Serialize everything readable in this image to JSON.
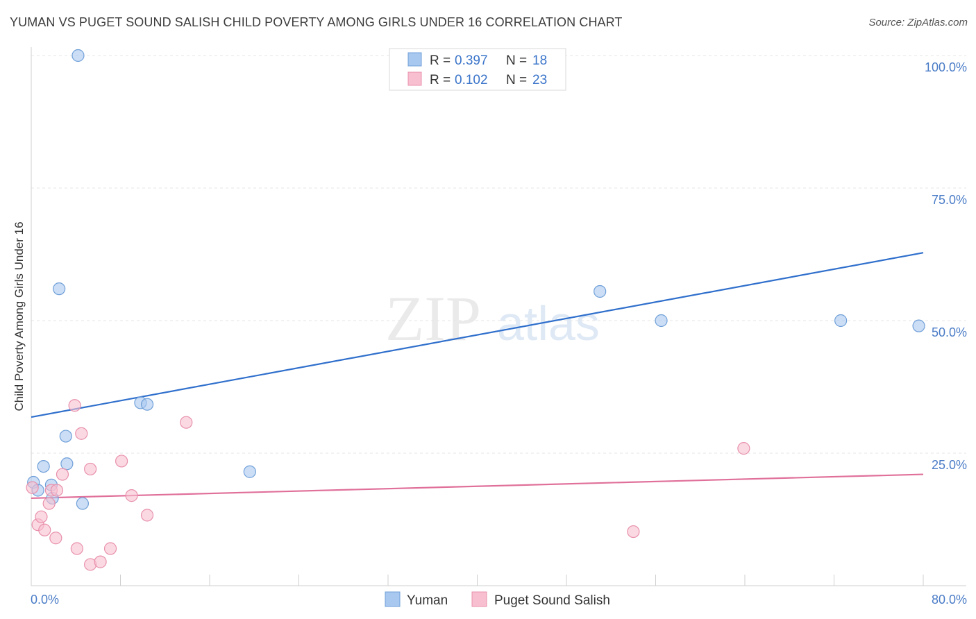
{
  "header": {
    "title": "YUMAN VS PUGET SOUND SALISH CHILD POVERTY AMONG GIRLS UNDER 16 CORRELATION CHART",
    "source": "Source: ZipAtlas.com"
  },
  "watermark": {
    "zip": "ZIP",
    "atlas": "atlas"
  },
  "chart_data": {
    "type": "scatter",
    "title": "YUMAN VS PUGET SOUND SALISH CHILD POVERTY AMONG GIRLS UNDER 16 CORRELATION CHART",
    "xlabel": "",
    "ylabel": "Child Poverty Among Girls Under 16",
    "xlim": [
      0,
      80
    ],
    "ylim": [
      0,
      100
    ],
    "x_tick_labels": [
      "0.0%",
      "80.0%"
    ],
    "y_ticks": [
      25,
      50,
      75,
      100
    ],
    "y_tick_labels": [
      "25.0%",
      "50.0%",
      "75.0%",
      "100.0%"
    ],
    "grid": true,
    "legend_position": "bottom-center",
    "series": [
      {
        "name": "Yuman",
        "color": "#a9c8f0",
        "stroke": "#6f9fd8",
        "line_color": "#2f6fcc",
        "R": "0.397",
        "N": "18",
        "trend": [
          [
            0,
            31.8
          ],
          [
            80,
            62.8
          ]
        ],
        "points": [
          [
            4.2,
            100
          ],
          [
            2.5,
            56
          ],
          [
            0.2,
            19.5
          ],
          [
            0.6,
            18
          ],
          [
            1.1,
            22.5
          ],
          [
            1.8,
            19
          ],
          [
            1.9,
            16.5
          ],
          [
            3.1,
            28.2
          ],
          [
            3.2,
            23
          ],
          [
            4.6,
            15.5
          ],
          [
            9.8,
            34.5
          ],
          [
            10.4,
            34.2
          ],
          [
            19.6,
            21.5
          ],
          [
            51,
            55.5
          ],
          [
            56.5,
            50
          ],
          [
            72.6,
            50
          ],
          [
            79.6,
            49
          ]
        ]
      },
      {
        "name": "Puget Sound Salish",
        "color": "#f8bfd0",
        "stroke": "#e890ab",
        "line_color": "#e0709a",
        "R": "0.102",
        "N": "23",
        "trend": [
          [
            0,
            16.5
          ],
          [
            80,
            21
          ]
        ],
        "points": [
          [
            0.1,
            18.5
          ],
          [
            0.6,
            11.5
          ],
          [
            0.9,
            13
          ],
          [
            1.2,
            10.5
          ],
          [
            1.6,
            15.5
          ],
          [
            1.8,
            18
          ],
          [
            2.2,
            9
          ],
          [
            2.3,
            18
          ],
          [
            2.8,
            21
          ],
          [
            3.9,
            34
          ],
          [
            4.1,
            7
          ],
          [
            4.5,
            28.7
          ],
          [
            5.3,
            22
          ],
          [
            5.3,
            4
          ],
          [
            6.2,
            4.5
          ],
          [
            7.1,
            7
          ],
          [
            8.1,
            23.5
          ],
          [
            9,
            17
          ],
          [
            10.4,
            13.3
          ],
          [
            13.9,
            30.8
          ],
          [
            63.9,
            25.9
          ],
          [
            54,
            10.2
          ]
        ]
      }
    ]
  }
}
